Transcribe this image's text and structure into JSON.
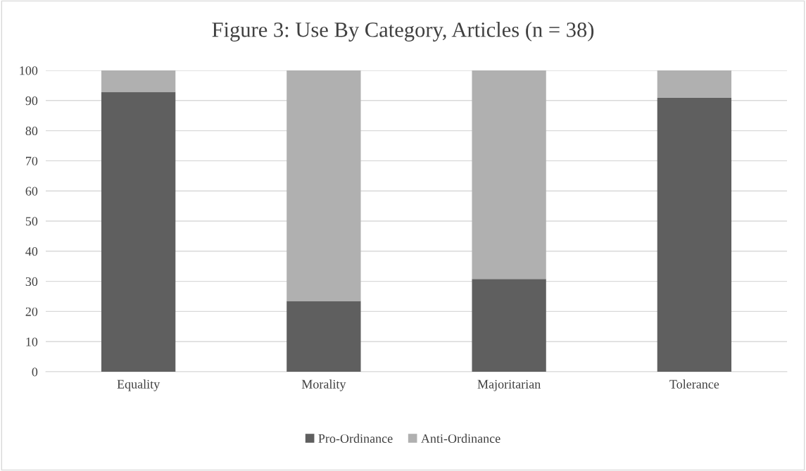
{
  "chart_data": {
    "type": "bar",
    "title": "Figure 3: Use By Category, Articles (n = 38)",
    "stacked": true,
    "categories": [
      "Equality",
      "Morality",
      "Majoritarian",
      "Tolerance"
    ],
    "series": [
      {
        "name": "Pro-Ordinance",
        "color": "#5f5f5f",
        "values": [
          92.9,
          23.5,
          30.8,
          90.9
        ]
      },
      {
        "name": "Anti-Ordinance",
        "color": "#b0b0b0",
        "values": [
          7.1,
          76.5,
          69.2,
          9.1
        ]
      }
    ],
    "ylim": [
      0,
      100
    ],
    "yticks": [
      0,
      10,
      20,
      30,
      40,
      50,
      60,
      70,
      80,
      90,
      100
    ],
    "grid": "y",
    "legend": "bottom"
  }
}
